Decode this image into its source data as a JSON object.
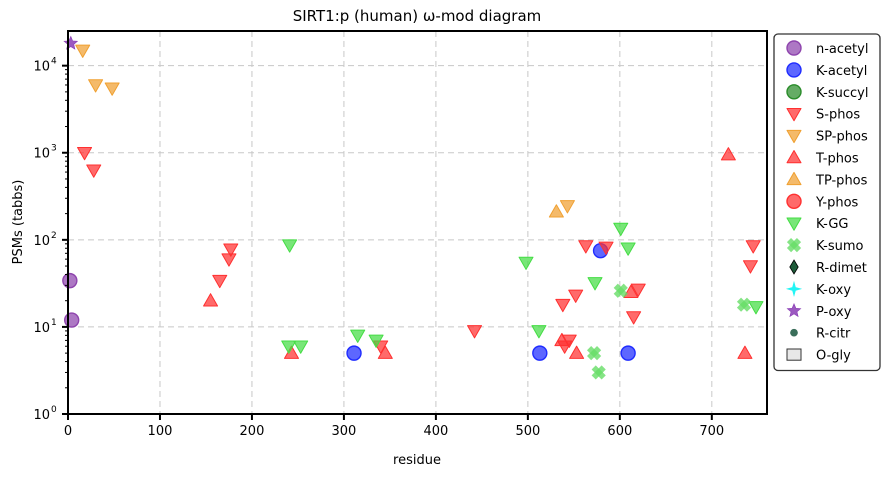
{
  "chart_data": {
    "type": "scatter",
    "title": "SIRT1:p (human) ω-mod diagram",
    "xlabel": "residue",
    "ylabel": "PSMs (tabbs)",
    "xlim": [
      0,
      760
    ],
    "ylim": [
      1,
      25000
    ],
    "yscale": "log",
    "grid": true,
    "legend_position": "right",
    "xticks": [
      "0",
      "100",
      "200",
      "300",
      "400",
      "500",
      "600",
      "700"
    ],
    "xtick_values": [
      0,
      100,
      200,
      300,
      400,
      500,
      600,
      700
    ],
    "ytick_values": [
      1,
      10,
      100,
      1000,
      10000
    ],
    "yticks": [
      "10",
      "10",
      "10",
      "10",
      "10"
    ],
    "ytick_exps": [
      "0",
      "1",
      "2",
      "3",
      "4"
    ],
    "series": [
      {
        "name": "n-acetyl",
        "marker": "circle",
        "color": "#8e44ad",
        "points": [
          [
            2,
            34
          ],
          [
            4,
            12
          ]
        ]
      },
      {
        "name": "K-acetyl",
        "marker": "circle",
        "color": "#1f2cff",
        "points": [
          [
            311,
            5
          ],
          [
            513,
            5
          ],
          [
            579,
            75
          ],
          [
            609,
            5
          ]
        ]
      },
      {
        "name": "K-succyl",
        "marker": "circle",
        "color": "#2a8c2a",
        "points": []
      },
      {
        "name": "S-phos",
        "marker": "triangle-down",
        "color": "#ff3030",
        "points": [
          [
            18,
            1000
          ],
          [
            28,
            630
          ],
          [
            165,
            34
          ],
          [
            175,
            60
          ],
          [
            177,
            78
          ],
          [
            340,
            6
          ],
          [
            442,
            9
          ],
          [
            540,
            6
          ],
          [
            538,
            18
          ],
          [
            545,
            7
          ],
          [
            552,
            23
          ],
          [
            563,
            85
          ],
          [
            585,
            82
          ],
          [
            615,
            13
          ],
          [
            620,
            27
          ],
          [
            742,
            50
          ],
          [
            745,
            85
          ]
        ]
      },
      {
        "name": "SP-phos",
        "marker": "triangle-down",
        "color": "#f0a030",
        "points": [
          [
            16,
            15000
          ],
          [
            30,
            6000
          ],
          [
            48,
            5500
          ],
          [
            543,
            245
          ]
        ]
      },
      {
        "name": "T-phos",
        "marker": "triangle-up",
        "color": "#ff3030",
        "points": [
          [
            155,
            20
          ],
          [
            243,
            5
          ],
          [
            345,
            5
          ],
          [
            537,
            7
          ],
          [
            553,
            5
          ],
          [
            612,
            25
          ],
          [
            718,
            950
          ],
          [
            736,
            5
          ]
        ]
      },
      {
        "name": "TP-phos",
        "marker": "triangle-up",
        "color": "#f0a030",
        "points": [
          [
            531,
            210
          ]
        ]
      },
      {
        "name": "Y-phos",
        "marker": "circle",
        "color": "#ff3030",
        "points": []
      },
      {
        "name": "K-GG",
        "marker": "triangle-down",
        "color": "#44dd44",
        "points": [
          [
            241,
            87
          ],
          [
            240,
            6
          ],
          [
            253,
            6
          ],
          [
            315,
            8
          ],
          [
            335,
            7
          ],
          [
            498,
            55
          ],
          [
            512,
            9
          ],
          [
            573,
            32
          ],
          [
            601,
            135
          ],
          [
            609,
            80
          ],
          [
            748,
            17
          ]
        ]
      },
      {
        "name": "K-sumo",
        "marker": "x",
        "color": "#66dd66",
        "points": [
          [
            572,
            5
          ],
          [
            577,
            3
          ],
          [
            601,
            26
          ],
          [
            735,
            18
          ]
        ]
      },
      {
        "name": "R-dimet",
        "marker": "diamond",
        "color": "#1e5c3a",
        "points": []
      },
      {
        "name": "K-oxy",
        "marker": "star4",
        "color": "#22f5f5",
        "points": []
      },
      {
        "name": "P-oxy",
        "marker": "star",
        "color": "#8a3cb5",
        "points": [
          [
            3,
            18000
          ]
        ]
      },
      {
        "name": "R-citr",
        "marker": "dot",
        "color": "#3a6e5a",
        "points": []
      },
      {
        "name": "O-gly",
        "marker": "square",
        "color": "#e8e8e8",
        "points": []
      }
    ]
  }
}
